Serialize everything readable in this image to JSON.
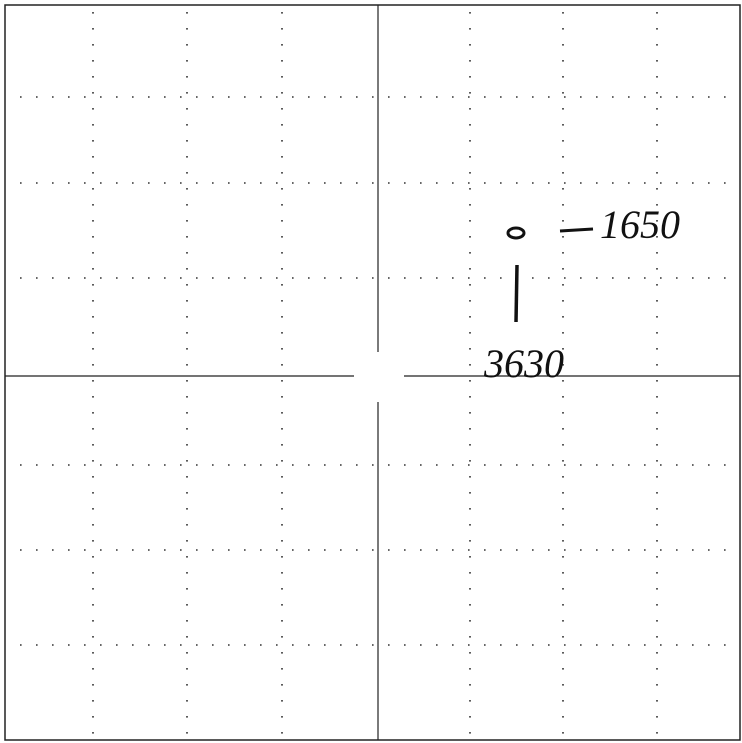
{
  "annotations": [
    {
      "label": "1650"
    },
    {
      "label": "3630"
    }
  ]
}
